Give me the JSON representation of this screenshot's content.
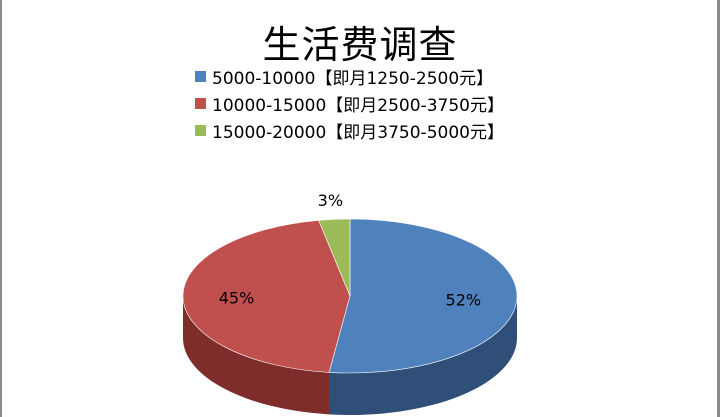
{
  "chart_data": {
    "type": "pie",
    "title": "生活费调查",
    "series": [
      {
        "name": "5000-10000【即月1250-2500元】",
        "value": 52,
        "label": "52%",
        "color": "#4f81bd",
        "side": "#2f4f79"
      },
      {
        "name": "10000-15000【即月2500-3750元】",
        "value": 45,
        "label": "45%",
        "color": "#c0504d",
        "side": "#7e2d2b"
      },
      {
        "name": "15000-20000【即月3750-5000元】",
        "value": 3,
        "label": "3%",
        "color": "#9bbb59",
        "side": "#5f7a2c"
      }
    ],
    "legend_position": "top",
    "style": "3d"
  }
}
